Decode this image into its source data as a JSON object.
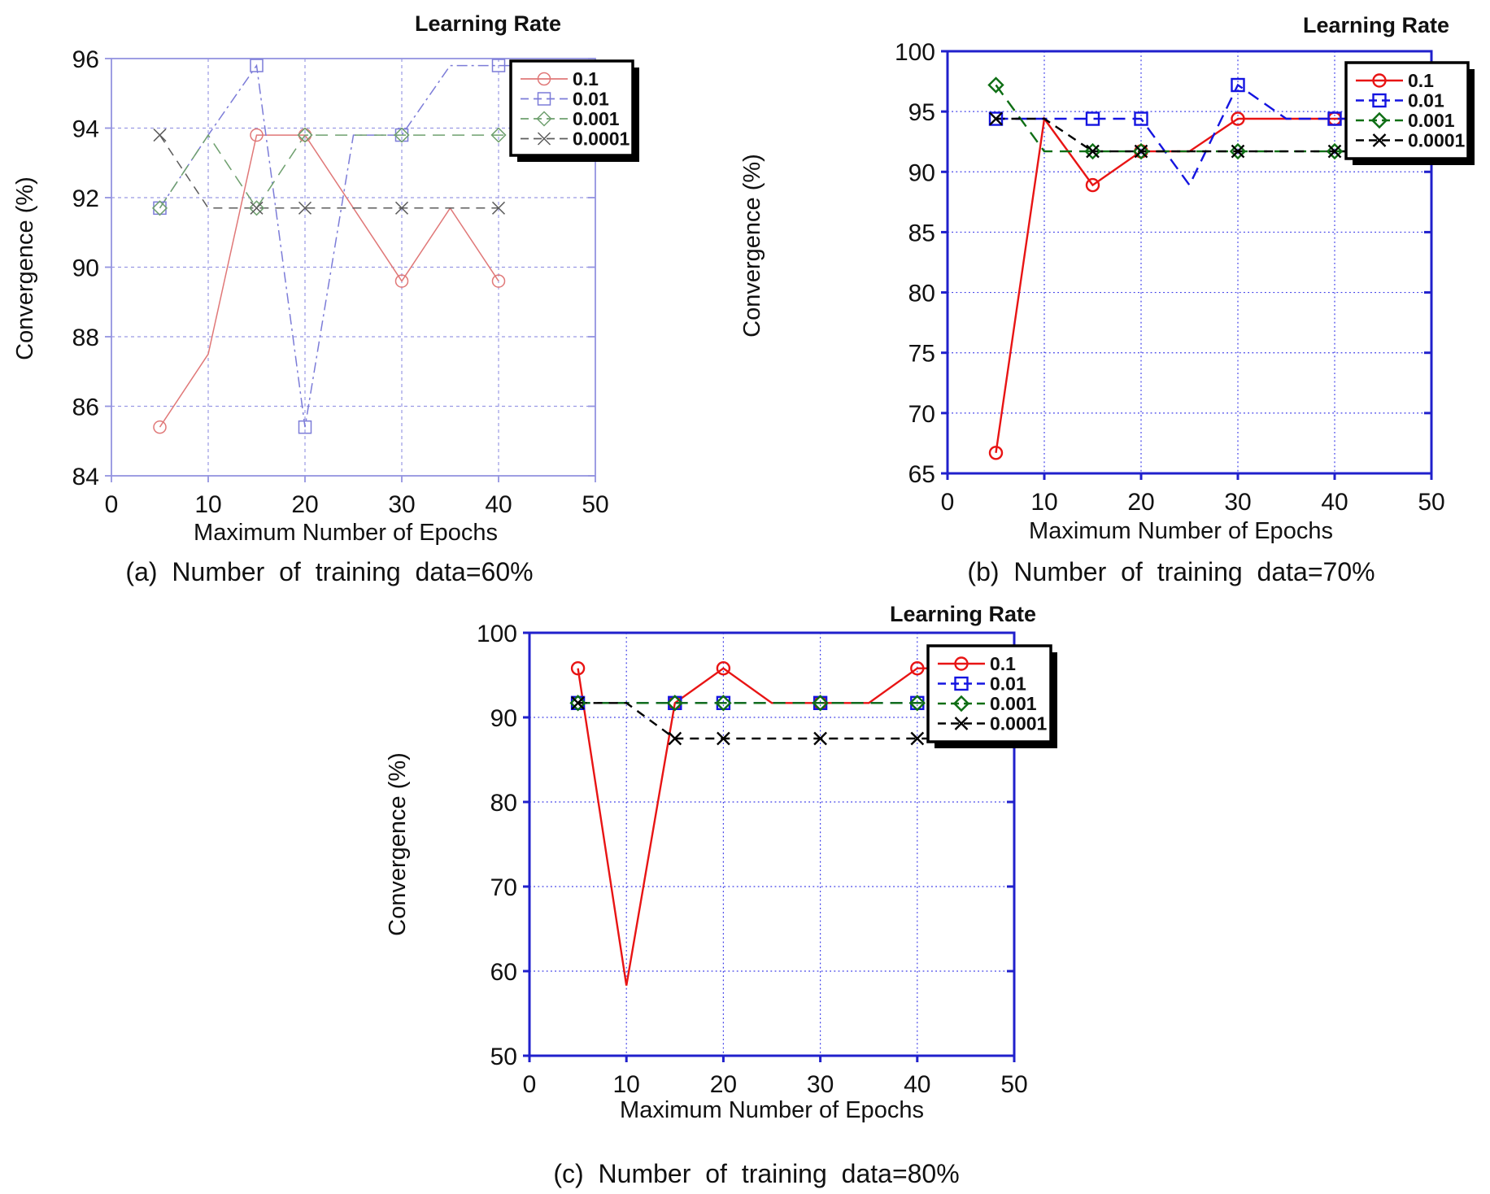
{
  "figure": {
    "legend_title": "Learning Rate",
    "xlabel": "Maximum Number of Epochs",
    "ylabel": "Convergence (%)"
  },
  "chart_data": [
    {
      "id": "a",
      "type": "line",
      "title": "Learning Rate",
      "xlabel": "Maximum Number of Epochs",
      "ylabel": "Convergence (%)",
      "caption": "(a) Number of training data=60%",
      "xlim": [
        0,
        50
      ],
      "ylim": [
        84,
        96
      ],
      "xticks": [
        0,
        10,
        20,
        30,
        40,
        50
      ],
      "yticks": [
        84,
        86,
        88,
        90,
        92,
        94,
        96
      ],
      "grid": true,
      "legend_position": "top-right",
      "frame_color": "#9494e0",
      "grid_color": "#9a9ae4",
      "x": [
        5,
        10,
        15,
        20,
        25,
        30,
        35,
        40
      ],
      "marker_x": [
        5,
        15,
        20,
        30,
        40
      ],
      "series": [
        {
          "name": "0.1",
          "color": "#e07878",
          "legend_text_color": "#dd2222",
          "marker": "circle",
          "line_style": "solid",
          "values": [
            85.4,
            87.5,
            93.8,
            93.8,
            91.7,
            89.6,
            91.7,
            89.6
          ],
          "extend": false
        },
        {
          "name": "0.01",
          "color": "#7c7cd8",
          "legend_text_color": "#2222dd",
          "marker": "square",
          "line_style": "dashdot",
          "values": [
            91.7,
            93.8,
            95.8,
            85.4,
            93.8,
            93.8,
            95.8,
            95.8
          ],
          "extend": true
        },
        {
          "name": "0.001",
          "color": "#6fa06f",
          "legend_text_color": "#117711",
          "marker": "diamond",
          "line_style": "dash",
          "values": [
            91.7,
            93.8,
            91.7,
            93.8,
            93.8,
            93.8,
            93.8,
            93.8
          ],
          "extend": true
        },
        {
          "name": "0.0001",
          "color": "#5c5c5c",
          "legend_text_color": "#222222",
          "marker": "x",
          "line_style": "dash2",
          "values": [
            93.8,
            91.7,
            91.7,
            91.7,
            91.7,
            91.7,
            91.7,
            91.7
          ],
          "extend": false
        }
      ]
    },
    {
      "id": "b",
      "type": "line",
      "title": "Learning Rate",
      "xlabel": "Maximum Number of Epochs",
      "ylabel": "Convergence (%)",
      "caption": "(b) Number of training data=70%",
      "xlim": [
        0,
        50
      ],
      "ylim": [
        65,
        100
      ],
      "xticks": [
        0,
        10,
        20,
        30,
        40,
        50
      ],
      "yticks": [
        65,
        70,
        75,
        80,
        85,
        90,
        95,
        100
      ],
      "grid": true,
      "legend_position": "top-right",
      "frame_color": "#2020cc",
      "grid_color": "#3a3ae8",
      "x": [
        5,
        10,
        15,
        20,
        25,
        30,
        35,
        40
      ],
      "marker_x": [
        5,
        15,
        20,
        30,
        40
      ],
      "series": [
        {
          "name": "0.1",
          "color": "#e81414",
          "legend_text_color": "#e81414",
          "marker": "circle",
          "line_style": "solid",
          "values": [
            66.7,
            94.4,
            88.9,
            91.7,
            91.7,
            94.4,
            94.4,
            94.4
          ],
          "extend": true
        },
        {
          "name": "0.01",
          "color": "#1414e0",
          "legend_text_color": "#1414e0",
          "marker": "square",
          "line_style": "dash",
          "values": [
            94.4,
            94.4,
            94.4,
            94.4,
            88.9,
            97.2,
            94.4,
            94.4
          ],
          "extend": true
        },
        {
          "name": "0.001",
          "color": "#0e6e14",
          "legend_text_color": "#0e6e14",
          "marker": "diamond",
          "line_style": "dash",
          "values": [
            97.2,
            91.7,
            91.7,
            91.7,
            91.7,
            91.7,
            91.7,
            91.7
          ],
          "extend": true
        },
        {
          "name": "0.0001",
          "color": "#000000",
          "legend_text_color": "#000000",
          "marker": "x",
          "line_style": "dash2",
          "values": [
            94.4,
            94.4,
            91.7,
            91.7,
            91.7,
            91.7,
            91.7,
            91.7
          ],
          "extend": true
        }
      ]
    },
    {
      "id": "c",
      "type": "line",
      "title": "Learning Rate",
      "xlabel": "Maximum Number of Epochs",
      "ylabel": "Convergence (%)",
      "caption": "(c) Number of training data=80%",
      "xlim": [
        0,
        50
      ],
      "ylim": [
        50,
        100
      ],
      "xticks": [
        0,
        10,
        20,
        30,
        40,
        50
      ],
      "yticks": [
        50,
        60,
        70,
        80,
        90,
        100
      ],
      "grid": true,
      "legend_position": "top-right",
      "frame_color": "#2020cc",
      "grid_color": "#3a3ae8",
      "x": [
        5,
        10,
        15,
        20,
        25,
        30,
        35,
        40
      ],
      "marker_x": [
        5,
        15,
        20,
        30,
        40
      ],
      "series": [
        {
          "name": "0.1",
          "color": "#e81414",
          "legend_text_color": "#e81414",
          "marker": "circle",
          "line_style": "solid",
          "values": [
            95.8,
            58.3,
            91.7,
            95.8,
            91.7,
            91.7,
            91.7,
            95.8
          ],
          "extend": true
        },
        {
          "name": "0.01",
          "color": "#1414e0",
          "legend_text_color": "#1414e0",
          "marker": "square",
          "line_style": "dash",
          "values": [
            91.7,
            91.7,
            91.7,
            91.7,
            91.7,
            91.7,
            91.7,
            91.7
          ],
          "extend": true
        },
        {
          "name": "0.001",
          "color": "#0e6e14",
          "legend_text_color": "#0e6e14",
          "marker": "diamond",
          "line_style": "dash",
          "values": [
            91.7,
            91.7,
            91.7,
            91.7,
            91.7,
            91.7,
            91.7,
            91.7
          ],
          "extend": true
        },
        {
          "name": "0.0001",
          "color": "#000000",
          "legend_text_color": "#000000",
          "marker": "x",
          "line_style": "dash2",
          "values": [
            91.7,
            91.7,
            87.5,
            87.5,
            87.5,
            87.5,
            87.5,
            87.5
          ],
          "extend": true
        }
      ]
    }
  ]
}
